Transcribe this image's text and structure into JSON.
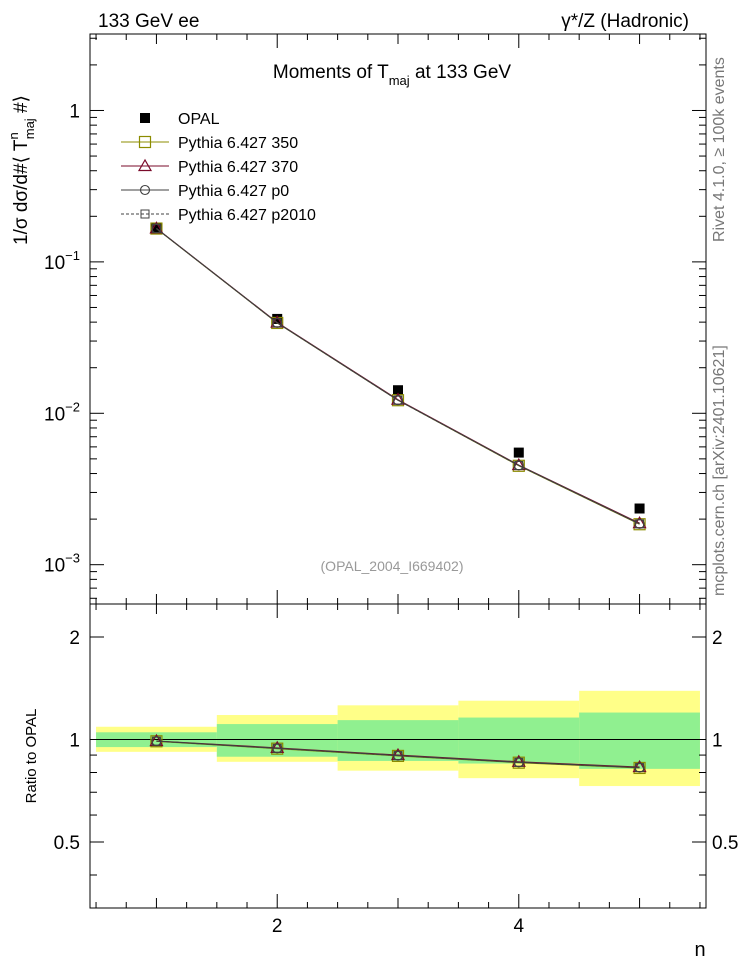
{
  "header": {
    "left": "133 GeV ee",
    "right": "γ*/Z (Hadronic)"
  },
  "side_text": {
    "rivet": "Rivet 4.1.0, ≥ 100k events",
    "mcplots": "mcplots.cern.ch [arXiv:2401.10621]"
  },
  "chart_data": [
    {
      "type": "scatter",
      "panel": "main",
      "title_parts": {
        "before": "Moments of T",
        "sub": "maj",
        "after": " at 133 GeV"
      },
      "ylabel": "1/σ  dσ/d#⟨ T^n_maj #⟩",
      "ylabel_parts": {
        "main": "1/σ  dσ/d#⟨ T",
        "sup": "n",
        "sub": "maj",
        "end": " #⟩"
      },
      "yscale": "log",
      "ylim": [
        0.00055,
        3.2
      ],
      "xlim": [
        0.45,
        5.55
      ],
      "y_tick_labels": [
        {
          "value": 1,
          "base": "1",
          "exp": ""
        },
        {
          "value": 0.1,
          "base": "10",
          "exp": "−1"
        },
        {
          "value": 0.01,
          "base": "10",
          "exp": "−2"
        },
        {
          "value": 0.001,
          "base": "10",
          "exp": "−3"
        }
      ],
      "watermark": "(OPAL_2004_I669402)",
      "legend_position": "top-left",
      "x": [
        1,
        2,
        3,
        4,
        5
      ],
      "series": [
        {
          "name": "OPAL",
          "marker": "filled-square",
          "color": "#000000",
          "values": [
            0.168,
            0.042,
            0.0142,
            0.0055,
            0.00235
          ]
        },
        {
          "name": "Pythia 6.427 350",
          "marker": "open-square",
          "color": "#8c8c00",
          "values": [
            0.166,
            0.0395,
            0.0122,
            0.0045,
            0.00185
          ]
        },
        {
          "name": "Pythia 6.427 370",
          "marker": "open-triangle",
          "color": "#7a0a2a",
          "values": [
            0.1665,
            0.0398,
            0.0123,
            0.00455,
            0.00188
          ]
        },
        {
          "name": "Pythia 6.427 p0",
          "marker": "open-circle",
          "color": "#404040",
          "values": [
            0.1662,
            0.0396,
            0.0122,
            0.00453,
            0.00186
          ]
        },
        {
          "name": "Pythia 6.427 p2010",
          "marker": "open-square-dashed",
          "color": "#404040",
          "values": [
            0.1662,
            0.0396,
            0.0122,
            0.00452,
            0.00186
          ]
        }
      ]
    },
    {
      "type": "line",
      "panel": "ratio",
      "ylabel": "Ratio to OPAL",
      "xlabel": "n",
      "ylim": [
        0.32,
        2.5
      ],
      "y_tick_labels": [
        "0.5",
        "1",
        "2"
      ],
      "x_tick_labels": [
        "2",
        "4"
      ],
      "x": [
        1,
        2,
        3,
        4,
        5
      ],
      "bands": {
        "bin_edges": [
          0.5,
          1.5,
          2.5,
          3.5,
          4.5,
          5.5
        ],
        "green": [
          [
            0.95,
            1.05
          ],
          [
            0.89,
            1.11
          ],
          [
            0.865,
            1.14
          ],
          [
            0.85,
            1.16
          ],
          [
            0.82,
            1.2
          ]
        ],
        "yellow": [
          [
            0.92,
            1.09
          ],
          [
            0.86,
            1.18
          ],
          [
            0.81,
            1.26
          ],
          [
            0.77,
            1.3
          ],
          [
            0.73,
            1.39
          ]
        ]
      },
      "series": [
        {
          "name": "Pythia 6.427 350",
          "marker": "open-square",
          "color": "#8c8c00",
          "values": [
            0.988,
            0.94,
            0.895,
            0.855,
            0.825
          ]
        },
        {
          "name": "Pythia 6.427 370",
          "marker": "open-triangle",
          "color": "#7a0a2a",
          "values": [
            0.99,
            0.945,
            0.9,
            0.86,
            0.83
          ]
        },
        {
          "name": "Pythia 6.427 p0",
          "marker": "open-circle",
          "color": "#404040",
          "values": [
            0.989,
            0.942,
            0.897,
            0.857,
            0.827
          ]
        },
        {
          "name": "Pythia 6.427 p2010",
          "marker": "open-square-dashed",
          "color": "#404040",
          "values": [
            0.989,
            0.942,
            0.897,
            0.857,
            0.827
          ]
        }
      ]
    }
  ]
}
